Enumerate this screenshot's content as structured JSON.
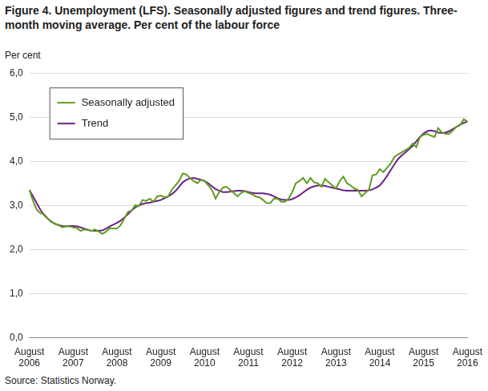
{
  "chart_data": {
    "type": "line",
    "title": "Figure 4. Unemployment (LFS). Seasonally adjusted figures and trend figures. Three-month moving average. Per cent of the labour force",
    "y_label": "Per cent",
    "source": "Source: Statistics Norway.",
    "categories": [
      "August 2006",
      null,
      null,
      null,
      null,
      null,
      null,
      null,
      null,
      null,
      null,
      null,
      "August 2007",
      null,
      null,
      null,
      null,
      null,
      null,
      null,
      null,
      null,
      null,
      null,
      "August 2008",
      null,
      null,
      null,
      null,
      null,
      null,
      null,
      null,
      null,
      null,
      null,
      "August 2009",
      null,
      null,
      null,
      null,
      null,
      null,
      null,
      null,
      null,
      null,
      null,
      "August 2010",
      null,
      null,
      null,
      null,
      null,
      null,
      null,
      null,
      null,
      null,
      null,
      "August 2011",
      null,
      null,
      null,
      null,
      null,
      null,
      null,
      null,
      null,
      null,
      null,
      "August 2012",
      null,
      null,
      null,
      null,
      null,
      null,
      null,
      null,
      null,
      null,
      null,
      "August 2013",
      null,
      null,
      null,
      null,
      null,
      null,
      null,
      null,
      null,
      null,
      null,
      "August 2014",
      null,
      null,
      null,
      null,
      null,
      null,
      null,
      null,
      null,
      null,
      null,
      "August 2015",
      null,
      null,
      null,
      null,
      null,
      null,
      null,
      null,
      null,
      null,
      null,
      "August 2016"
    ],
    "series": [
      {
        "name": "Seasonally adjusted",
        "color": "#5f9c1f",
        "values": [
          3.35,
          3.1,
          2.9,
          2.82,
          2.8,
          2.7,
          2.62,
          2.58,
          2.55,
          2.5,
          2.52,
          2.52,
          2.5,
          2.48,
          2.42,
          2.45,
          2.45,
          2.42,
          2.45,
          2.4,
          2.35,
          2.4,
          2.48,
          2.47,
          2.47,
          2.55,
          2.7,
          2.85,
          2.88,
          3.0,
          2.98,
          3.12,
          3.1,
          3.15,
          3.08,
          3.2,
          3.22,
          3.18,
          3.2,
          3.35,
          3.45,
          3.55,
          3.72,
          3.7,
          3.62,
          3.55,
          3.5,
          3.58,
          3.55,
          3.45,
          3.35,
          3.15,
          3.3,
          3.4,
          3.42,
          3.35,
          3.28,
          3.2,
          3.28,
          3.32,
          3.28,
          3.25,
          3.2,
          3.18,
          3.12,
          3.05,
          3.05,
          3.15,
          3.15,
          3.08,
          3.08,
          3.15,
          3.3,
          3.5,
          3.55,
          3.62,
          3.5,
          3.62,
          3.52,
          3.5,
          3.42,
          3.6,
          3.52,
          3.45,
          3.38,
          3.55,
          3.65,
          3.5,
          3.45,
          3.38,
          3.35,
          3.2,
          3.28,
          3.35,
          3.68,
          3.7,
          3.82,
          3.75,
          3.85,
          3.95,
          4.1,
          4.15,
          4.2,
          4.25,
          4.3,
          4.4,
          4.32,
          4.55,
          4.6,
          4.62,
          4.58,
          4.55,
          4.75,
          4.65,
          4.62,
          4.62,
          4.7,
          4.78,
          4.82,
          4.95,
          4.9
        ]
      },
      {
        "name": "Trend",
        "color": "#6b1f86",
        "values": [
          3.35,
          3.2,
          3.05,
          2.9,
          2.78,
          2.7,
          2.63,
          2.58,
          2.55,
          2.53,
          2.52,
          2.53,
          2.53,
          2.52,
          2.5,
          2.47,
          2.44,
          2.42,
          2.42,
          2.42,
          2.43,
          2.47,
          2.52,
          2.56,
          2.6,
          2.65,
          2.72,
          2.8,
          2.88,
          2.95,
          3.0,
          3.03,
          3.05,
          3.06,
          3.08,
          3.1,
          3.12,
          3.16,
          3.2,
          3.25,
          3.32,
          3.42,
          3.52,
          3.58,
          3.61,
          3.62,
          3.6,
          3.58,
          3.55,
          3.5,
          3.43,
          3.37,
          3.33,
          3.3,
          3.3,
          3.31,
          3.32,
          3.33,
          3.33,
          3.32,
          3.3,
          3.28,
          3.27,
          3.27,
          3.27,
          3.26,
          3.24,
          3.2,
          3.16,
          3.13,
          3.12,
          3.12,
          3.14,
          3.18,
          3.23,
          3.29,
          3.35,
          3.4,
          3.43,
          3.45,
          3.45,
          3.44,
          3.42,
          3.4,
          3.38,
          3.36,
          3.34,
          3.33,
          3.33,
          3.33,
          3.33,
          3.33,
          3.33,
          3.34,
          3.36,
          3.4,
          3.45,
          3.55,
          3.67,
          3.8,
          3.93,
          4.05,
          4.13,
          4.2,
          4.27,
          4.35,
          4.45,
          4.55,
          4.63,
          4.68,
          4.7,
          4.68,
          4.65,
          4.64,
          4.65,
          4.68,
          4.73,
          4.78,
          4.83,
          4.87,
          4.9
        ]
      }
    ],
    "ylim": [
      0,
      6
    ],
    "yticks": [
      {
        "value": 0,
        "label": "0,0"
      },
      {
        "value": 1,
        "label": "1,0"
      },
      {
        "value": 2,
        "label": "2,0"
      },
      {
        "value": 3,
        "label": "3,0"
      },
      {
        "value": 4,
        "label": "4,0"
      },
      {
        "value": 5,
        "label": "5,0"
      },
      {
        "value": 6,
        "label": "6,0"
      }
    ],
    "grid": true,
    "legend": "upper left"
  }
}
